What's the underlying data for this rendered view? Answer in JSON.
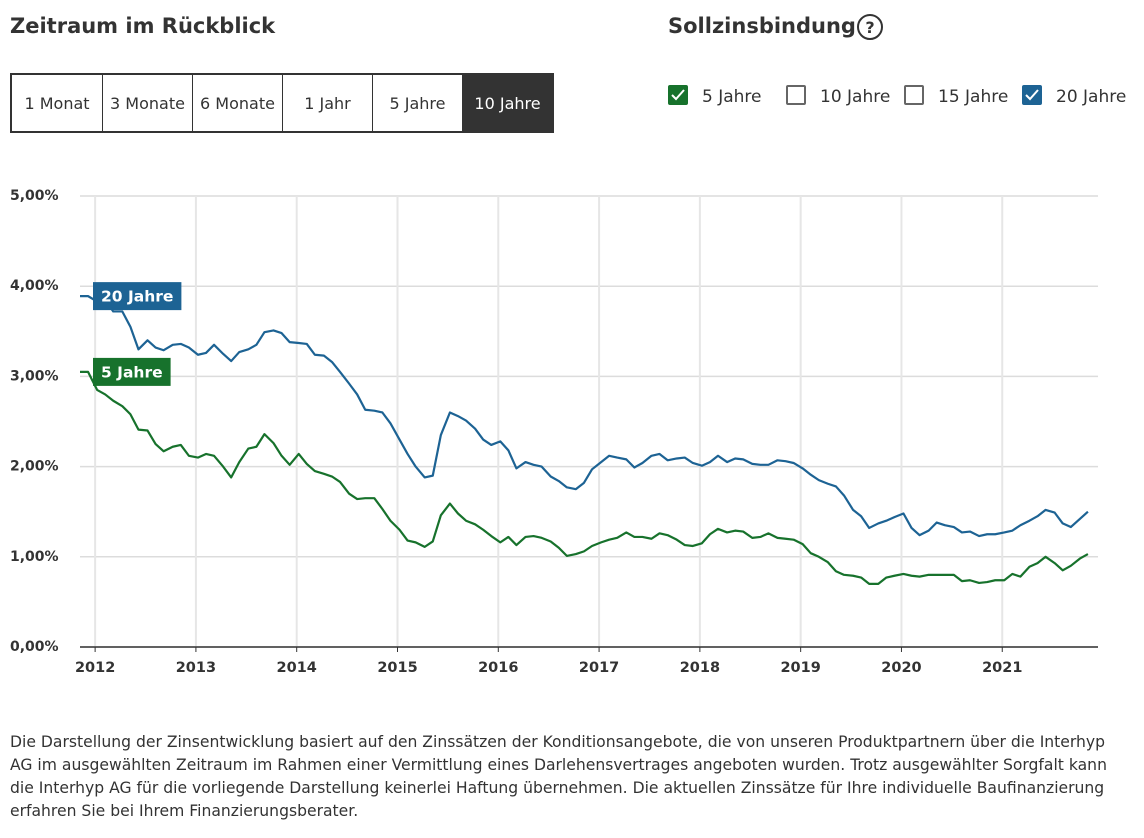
{
  "period_selector": {
    "title": "Zeitraum im Rückblick",
    "options": [
      {
        "label": "1 Monat",
        "selected": false
      },
      {
        "label": "3 Monate",
        "selected": false
      },
      {
        "label": "6 Monate",
        "selected": false
      },
      {
        "label": "1 Jahr",
        "selected": false
      },
      {
        "label": "5 Jahre",
        "selected": false
      },
      {
        "label": "10 Jahre",
        "selected": true
      }
    ]
  },
  "fixed_rate_period": {
    "title": "Sollzinsbindung",
    "help": "?",
    "options": [
      {
        "label": "5 Jahre",
        "checked": true,
        "color": "#17722c"
      },
      {
        "label": "10 Jahre",
        "checked": false,
        "color": "#555555"
      },
      {
        "label": "15 Jahre",
        "checked": false,
        "color": "#555555"
      },
      {
        "label": "20 Jahre",
        "checked": true,
        "color": "#1d6394"
      }
    ]
  },
  "chart_data": {
    "type": "line",
    "x": [
      2011.85,
      2011.93,
      2012.02,
      2012.1,
      2012.18,
      2012.27,
      2012.35,
      2012.43,
      2012.52,
      2012.6,
      2012.68,
      2012.77,
      2012.85,
      2012.93,
      2013.02,
      2013.1,
      2013.18,
      2013.27,
      2013.35,
      2013.43,
      2013.52,
      2013.6,
      2013.68,
      2013.77,
      2013.85,
      2013.93,
      2014.02,
      2014.1,
      2014.18,
      2014.27,
      2014.35,
      2014.43,
      2014.52,
      2014.6,
      2014.68,
      2014.77,
      2014.85,
      2014.93,
      2015.02,
      2015.1,
      2015.18,
      2015.27,
      2015.35,
      2015.43,
      2015.52,
      2015.6,
      2015.68,
      2015.77,
      2015.85,
      2015.93,
      2016.02,
      2016.1,
      2016.18,
      2016.27,
      2016.35,
      2016.43,
      2016.52,
      2016.6,
      2016.68,
      2016.77,
      2016.85,
      2016.93,
      2017.02,
      2017.1,
      2017.18,
      2017.27,
      2017.35,
      2017.43,
      2017.52,
      2017.6,
      2017.68,
      2017.77,
      2017.85,
      2017.93,
      2018.02,
      2018.1,
      2018.18,
      2018.27,
      2018.35,
      2018.43,
      2018.52,
      2018.6,
      2018.68,
      2018.77,
      2018.85,
      2018.93,
      2019.02,
      2019.1,
      2019.18,
      2019.27,
      2019.35,
      2019.43,
      2019.52,
      2019.6,
      2019.68,
      2019.77,
      2019.85,
      2019.93,
      2020.02,
      2020.1,
      2020.18,
      2020.27,
      2020.35,
      2020.43,
      2020.52,
      2020.6,
      2020.68,
      2020.77,
      2020.85,
      2020.93,
      2021.02,
      2021.1,
      2021.18,
      2021.27,
      2021.35,
      2021.43,
      2021.52,
      2021.6,
      2021.68,
      2021.77,
      2021.85
    ],
    "series": [
      {
        "name": "20 Jahre",
        "color": "#1d6394",
        "values": [
          3.89,
          3.89,
          3.83,
          3.85,
          3.72,
          3.72,
          3.55,
          3.3,
          3.4,
          3.32,
          3.29,
          3.35,
          3.36,
          3.32,
          3.24,
          3.26,
          3.35,
          3.25,
          3.17,
          3.27,
          3.3,
          3.35,
          3.49,
          3.51,
          3.48,
          3.38,
          3.37,
          3.36,
          3.24,
          3.23,
          3.16,
          3.05,
          2.92,
          2.8,
          2.63,
          2.62,
          2.6,
          2.48,
          2.3,
          2.14,
          2.0,
          1.88,
          1.9,
          2.35,
          2.6,
          2.56,
          2.51,
          2.42,
          2.3,
          2.24,
          2.28,
          2.18,
          1.98,
          2.05,
          2.02,
          2.0,
          1.89,
          1.84,
          1.77,
          1.75,
          1.82,
          1.97,
          2.05,
          2.12,
          2.1,
          2.08,
          1.99,
          2.04,
          2.12,
          2.14,
          2.07,
          2.09,
          2.1,
          2.04,
          2.01,
          2.05,
          2.12,
          2.05,
          2.09,
          2.08,
          2.03,
          2.02,
          2.02,
          2.07,
          2.06,
          2.04,
          1.98,
          1.91,
          1.85,
          1.81,
          1.78,
          1.68,
          1.52,
          1.45,
          1.32,
          1.37,
          1.4,
          1.44,
          1.48,
          1.32,
          1.24,
          1.29,
          1.38,
          1.35,
          1.33,
          1.27,
          1.28,
          1.23,
          1.25,
          1.25,
          1.27,
          1.29,
          1.35,
          1.4,
          1.45,
          1.52,
          1.49,
          1.37,
          1.33,
          1.42,
          1.5
        ]
      },
      {
        "name": "5 Jahre",
        "color": "#17722c",
        "values": [
          3.05,
          3.05,
          2.85,
          2.8,
          2.73,
          2.67,
          2.58,
          2.41,
          2.4,
          2.25,
          2.17,
          2.22,
          2.24,
          2.12,
          2.1,
          2.14,
          2.12,
          2.0,
          1.88,
          2.05,
          2.2,
          2.22,
          2.36,
          2.26,
          2.12,
          2.02,
          2.14,
          2.03,
          1.95,
          1.92,
          1.89,
          1.83,
          1.7,
          1.64,
          1.65,
          1.65,
          1.53,
          1.4,
          1.3,
          1.18,
          1.16,
          1.11,
          1.17,
          1.46,
          1.59,
          1.48,
          1.4,
          1.36,
          1.3,
          1.23,
          1.16,
          1.22,
          1.13,
          1.22,
          1.23,
          1.21,
          1.17,
          1.1,
          1.01,
          1.03,
          1.06,
          1.12,
          1.16,
          1.19,
          1.21,
          1.27,
          1.22,
          1.22,
          1.2,
          1.26,
          1.24,
          1.19,
          1.13,
          1.12,
          1.15,
          1.25,
          1.31,
          1.27,
          1.29,
          1.28,
          1.21,
          1.22,
          1.26,
          1.21,
          1.2,
          1.19,
          1.14,
          1.04,
          1.0,
          0.94,
          0.84,
          0.8,
          0.79,
          0.77,
          0.7,
          0.7,
          0.77,
          0.79,
          0.81,
          0.79,
          0.78,
          0.8,
          0.8,
          0.8,
          0.8,
          0.73,
          0.74,
          0.71,
          0.72,
          0.74,
          0.74,
          0.81,
          0.78,
          0.89,
          0.93,
          1.0,
          0.93,
          0.85,
          0.9,
          0.98,
          1.03
        ]
      }
    ],
    "xlim": [
      2011.85,
      2021.95
    ],
    "xticks": [
      2012,
      2013,
      2014,
      2015,
      2016,
      2017,
      2018,
      2019,
      2020,
      2021
    ],
    "ylim": [
      0,
      5
    ],
    "yticks": [
      {
        "value": 0,
        "label": "0,00%"
      },
      {
        "value": 1,
        "label": "1,00%"
      },
      {
        "value": 2,
        "label": "2,00%"
      },
      {
        "value": 3,
        "label": "3,00%"
      },
      {
        "value": 4,
        "label": "4,00%"
      },
      {
        "value": 5,
        "label": "5,00%"
      }
    ],
    "grid": true
  },
  "footnote": "Die Darstellung der Zinsentwicklung basiert auf den Zinssätzen der Konditionsangebote, die von unseren Produktpartnern über die Interhyp AG im ausgewählten Zeitraum im Rahmen einer Vermittlung eines Darlehensvertrages angeboten wurden. Trotz ausgewählter Sorgfalt kann die Interhyp AG für die vorliegende Darstellung keinerlei Haftung übernehmen. Die aktuellen Zinssätze für Ihre individuelle Baufinanzierung erfahren Sie bei Ihrem Finanzierungsberater."
}
